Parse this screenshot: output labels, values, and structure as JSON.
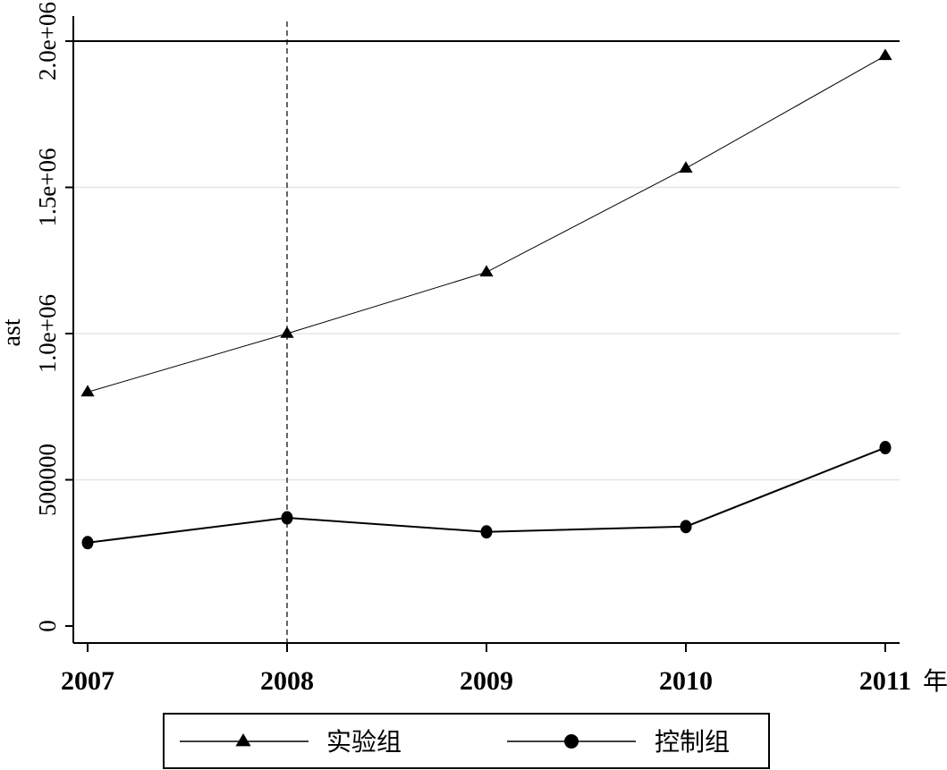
{
  "chart_data": {
    "type": "line",
    "title": "",
    "ylabel": "ast",
    "xlabel": "",
    "x_unit": "年",
    "x": [
      2007,
      2008,
      2009,
      2010,
      2011
    ],
    "x_tick_labels": [
      "2007",
      "2008",
      "2009",
      "2010",
      "2011"
    ],
    "y_ticks": [
      0,
      500000,
      1000000,
      1500000,
      2000000
    ],
    "y_tick_labels": [
      "0",
      "500000",
      "1.0e+06",
      "1.5e+06",
      "2.0e+06"
    ],
    "ylim": [
      -50000,
      2030000
    ],
    "grid": true,
    "reference_lines": {
      "vertical_x": 2008,
      "horizontal_y": 2000000
    },
    "series": [
      {
        "name": "实验组",
        "marker": "triangle",
        "values": [
          800000,
          1000000,
          1210000,
          1565000,
          1950000
        ]
      },
      {
        "name": "控制组",
        "marker": "circle",
        "values": [
          285000,
          370000,
          322000,
          340000,
          610000
        ]
      }
    ],
    "legend": {
      "position": "bottom"
    }
  }
}
